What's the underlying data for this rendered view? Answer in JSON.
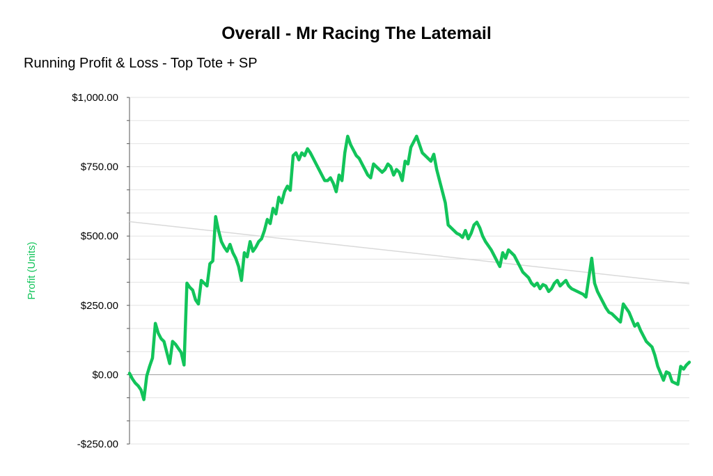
{
  "chart_data": {
    "type": "line",
    "title": "Overall - Mr Racing The Latemail",
    "subtitle": "Running Profit & Loss - Top Tote + SP",
    "xlabel": "",
    "ylabel": "Profit (Units)",
    "ylim": [
      -250,
      1000
    ],
    "yticks": [
      -250,
      0,
      250,
      500,
      750,
      1000
    ],
    "ytick_labels": [
      "-$250.00",
      "$0.00",
      "$250.00",
      "$500.00",
      "$750.00",
      "$1,000.00"
    ],
    "grid": true,
    "legend": "none",
    "colors": {
      "series": "#12c45a",
      "trend": "#d9d9d9",
      "grid": "#e3e3e3",
      "zero_line": "#999999",
      "axis": "#555555",
      "ylabel": "#12c45a"
    },
    "series": [
      {
        "values": [
          5,
          -15,
          -30,
          -40,
          -55,
          -90,
          -5,
          30,
          60,
          185,
          150,
          130,
          120,
          80,
          40,
          120,
          110,
          95,
          80,
          35,
          330,
          315,
          305,
          270,
          255,
          340,
          330,
          320,
          400,
          410,
          570,
          520,
          480,
          460,
          445,
          470,
          440,
          420,
          390,
          340,
          440,
          425,
          480,
          445,
          460,
          480,
          490,
          520,
          560,
          545,
          600,
          580,
          640,
          620,
          660,
          680,
          665,
          790,
          800,
          775,
          800,
          790,
          815,
          800,
          780,
          760,
          740,
          720,
          700,
          700,
          710,
          690,
          660,
          720,
          700,
          800,
          860,
          830,
          810,
          790,
          780,
          760,
          740,
          720,
          710,
          760,
          750,
          740,
          730,
          740,
          760,
          750,
          720,
          740,
          730,
          700,
          770,
          760,
          820,
          840,
          860,
          830,
          800,
          790,
          780,
          770,
          795,
          740,
          700,
          660,
          620,
          540,
          530,
          520,
          510,
          505,
          495,
          520,
          490,
          510,
          540,
          550,
          530,
          500,
          480,
          465,
          450,
          430,
          410,
          390,
          440,
          420,
          450,
          440,
          430,
          410,
          390,
          370,
          360,
          350,
          330,
          320,
          330,
          310,
          325,
          320,
          300,
          310,
          330,
          340,
          320,
          330,
          340,
          320,
          310,
          305,
          300,
          295,
          290,
          280,
          350,
          420,
          330,
          300,
          280,
          260,
          240,
          225,
          220,
          210,
          200,
          190,
          255,
          240,
          225,
          200,
          175,
          185,
          160,
          140,
          120,
          110,
          100,
          70,
          30,
          5,
          -20,
          10,
          5,
          -25,
          -30,
          -35,
          30,
          20,
          35,
          45
        ]
      },
      {
        "values": [
          552,
          328
        ]
      }
    ]
  }
}
